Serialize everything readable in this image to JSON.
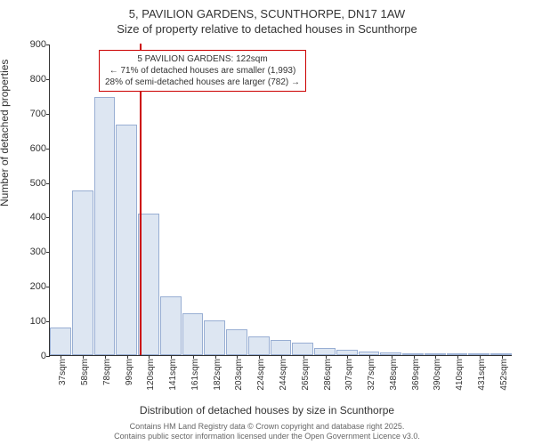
{
  "chart": {
    "type": "histogram",
    "title_line1": "5, PAVILION GARDENS, SCUNTHORPE, DN17 1AW",
    "title_line2": "Size of property relative to detached houses in Scunthorpe",
    "ylabel": "Number of detached properties",
    "xlabel": "Distribution of detached houses by size in Scunthorpe",
    "ylim": [
      0,
      900
    ],
    "ytick_step": 100,
    "yticks": [
      0,
      100,
      200,
      300,
      400,
      500,
      600,
      700,
      800,
      900
    ],
    "x_categories": [
      "37sqm",
      "58sqm",
      "78sqm",
      "99sqm",
      "120sqm",
      "141sqm",
      "161sqm",
      "182sqm",
      "203sqm",
      "224sqm",
      "244sqm",
      "265sqm",
      "286sqm",
      "307sqm",
      "327sqm",
      "348sqm",
      "369sqm",
      "390sqm",
      "410sqm",
      "431sqm",
      "452sqm"
    ],
    "values": [
      80,
      475,
      745,
      665,
      410,
      170,
      120,
      100,
      75,
      55,
      45,
      35,
      20,
      15,
      10,
      8,
      6,
      4,
      4,
      3,
      2
    ],
    "bar_color": "#dde6f2",
    "bar_border_color": "#98aed3",
    "background_color": "#ffffff",
    "marker_line_color": "#cc0000",
    "marker_position_index": 4,
    "annotation": {
      "border_color": "#cc0000",
      "lines": [
        "5 PAVILION GARDENS: 122sqm",
        "← 71% of detached houses are smaller (1,993)",
        "28% of semi-detached houses are larger (782) →"
      ]
    },
    "footer_line1": "Contains HM Land Registry data © Crown copyright and database right 2025.",
    "footer_line2": "Contains public sector information licensed under the Open Government Licence v3.0.",
    "title_fontsize": 13,
    "label_fontsize": 12,
    "tick_fontsize": 11,
    "footer_fontsize": 9
  }
}
